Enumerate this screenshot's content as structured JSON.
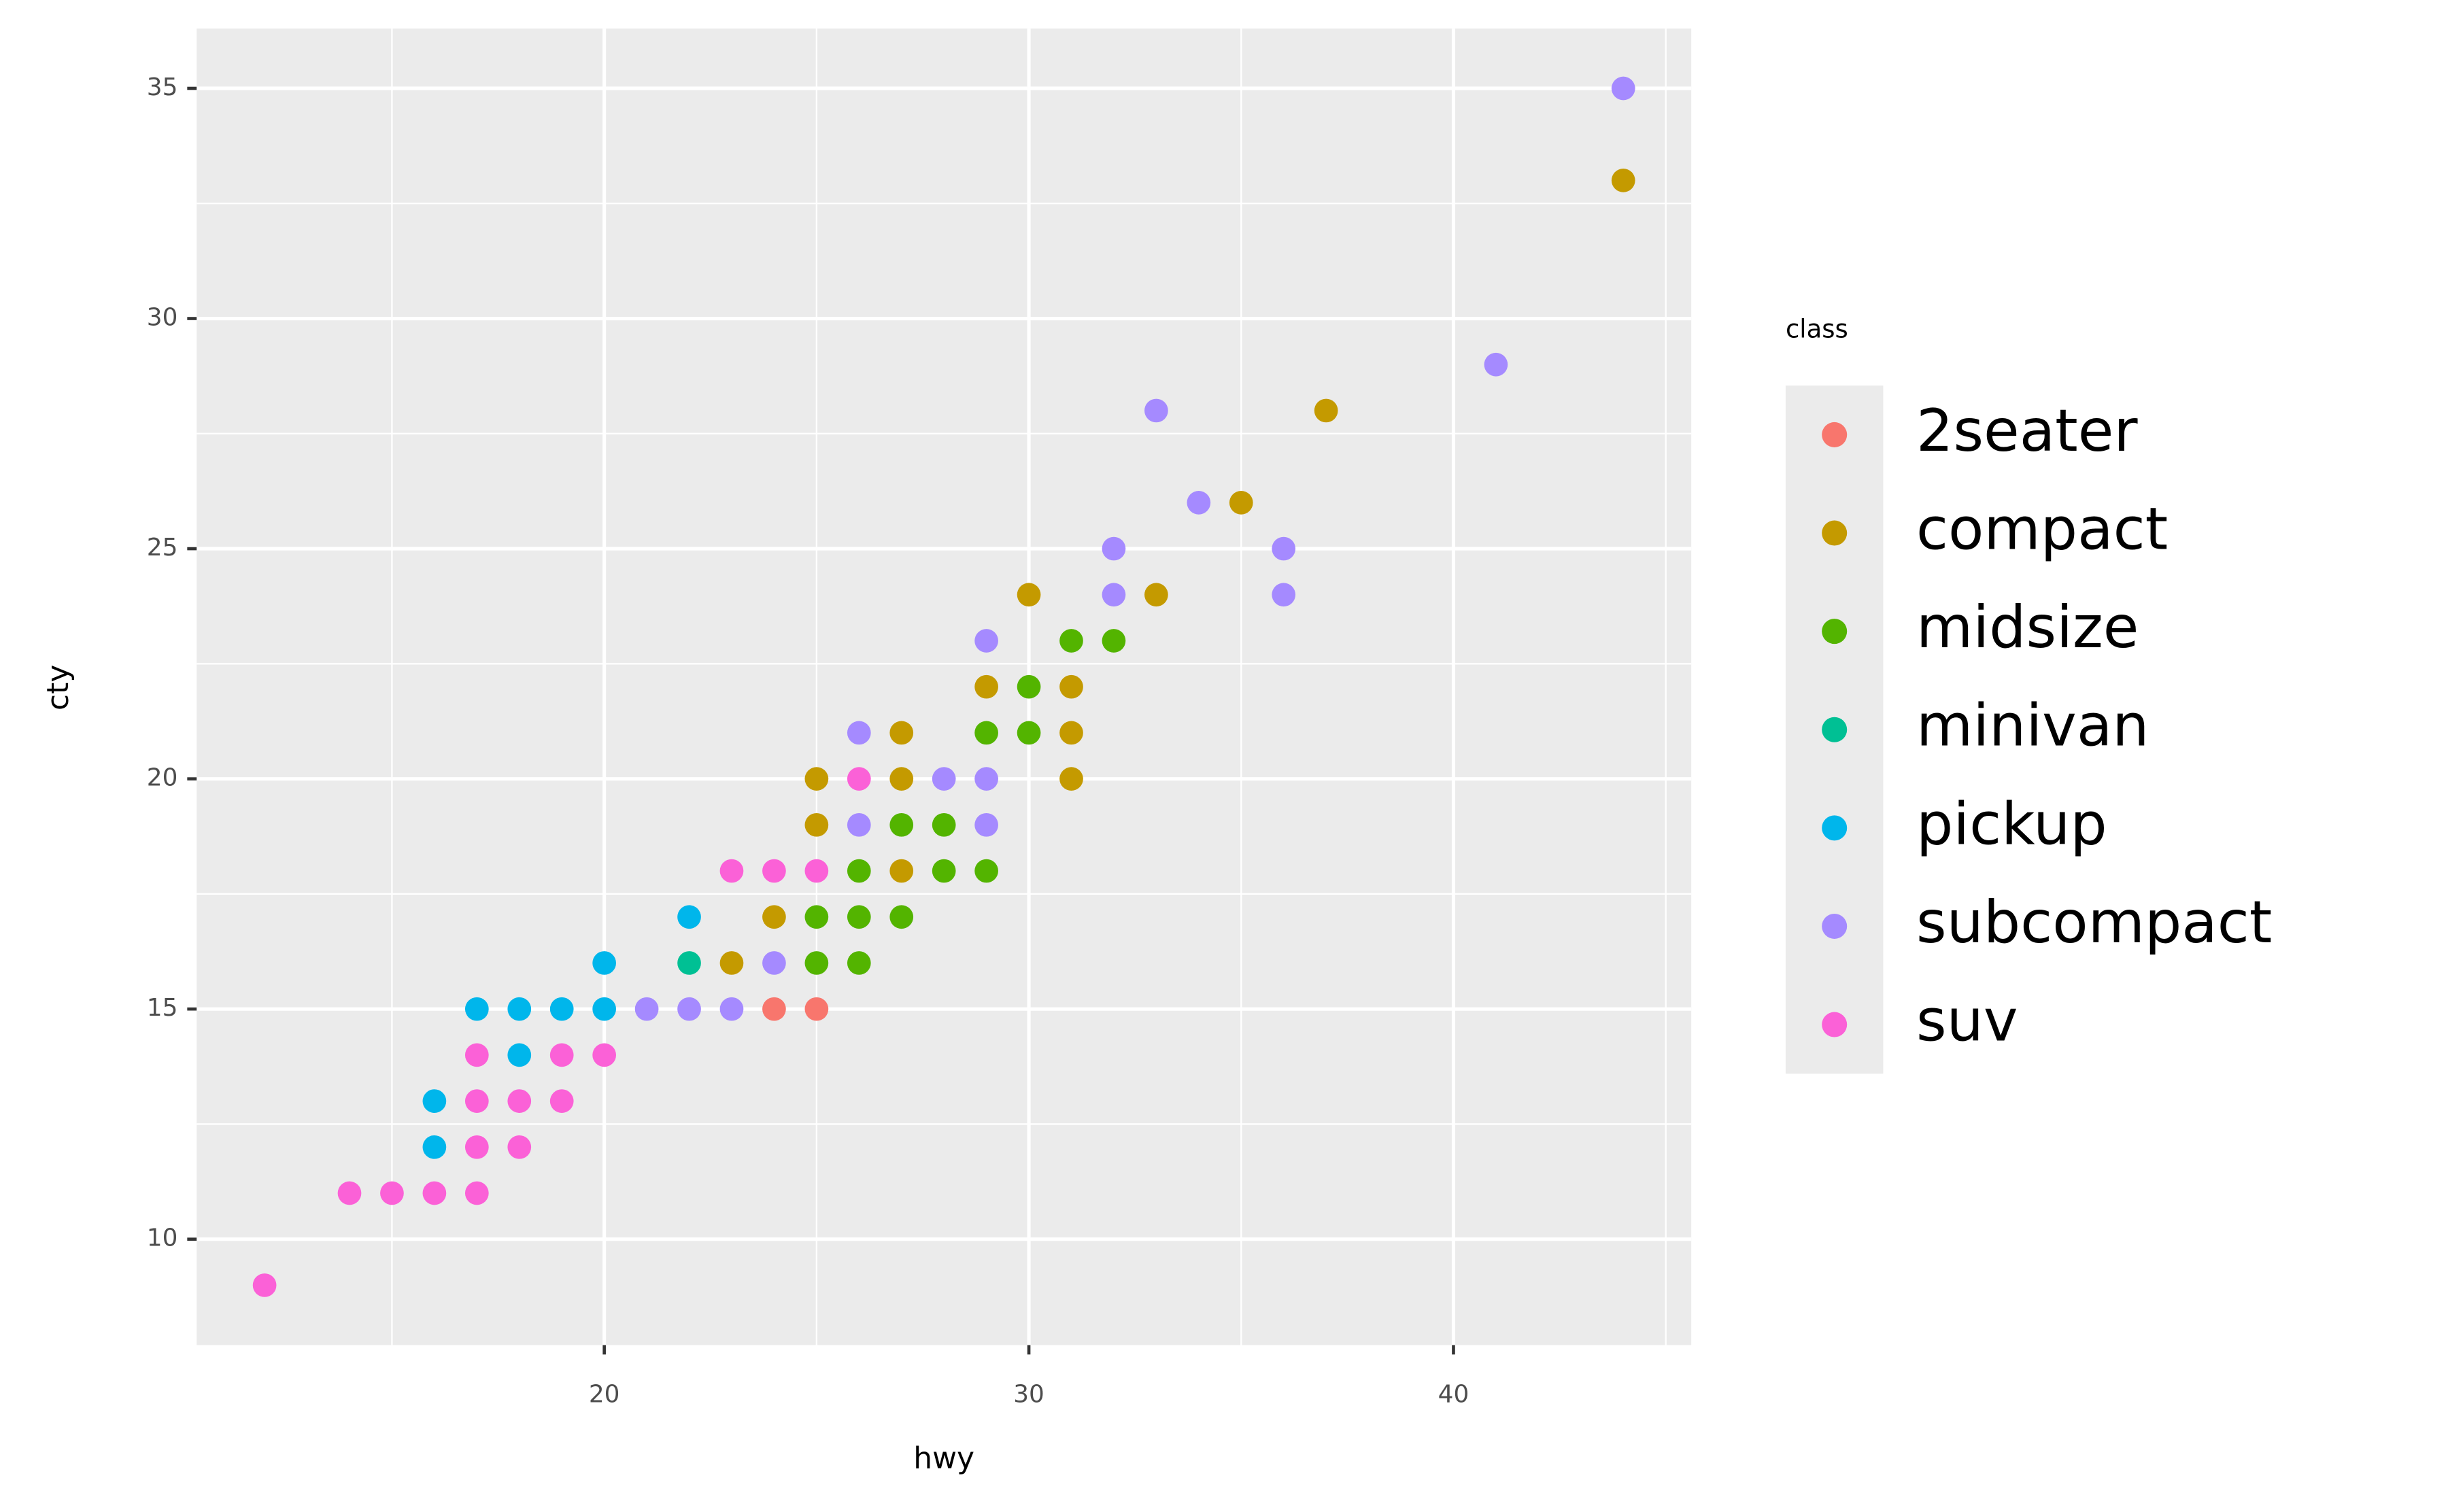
{
  "chart_data": {
    "type": "scatter",
    "x_label": "hwy",
    "y_label": "cty",
    "legend_title": "class",
    "legend_position": "right",
    "grid": true,
    "xlim": [
      10.4,
      45.6
    ],
    "ylim": [
      7.7,
      36.3
    ],
    "xticks": [
      20,
      30,
      40
    ],
    "yticks": [
      10,
      15,
      20,
      25,
      30,
      35
    ],
    "series": [
      {
        "name": "2seater",
        "color": "#F8766D",
        "x": [
          24,
          25
        ],
        "values": [
          15,
          15
        ]
      },
      {
        "name": "compact",
        "color": "#C49A00",
        "x": [
          44,
          37,
          35,
          33,
          30,
          29,
          31,
          27,
          31,
          25,
          27,
          31,
          25,
          27,
          24,
          23
        ],
        "values": [
          33,
          28,
          26,
          24,
          24,
          22,
          22,
          21,
          21,
          20,
          20,
          20,
          19,
          18,
          17,
          16
        ]
      },
      {
        "name": "midsize",
        "color": "#53B400",
        "x": [
          31,
          32,
          30,
          29,
          30,
          27,
          28,
          26,
          28,
          29,
          25,
          26,
          27,
          25,
          26
        ],
        "values": [
          23,
          23,
          22,
          21,
          21,
          19,
          19,
          18,
          18,
          18,
          17,
          17,
          17,
          16,
          16
        ]
      },
      {
        "name": "minivan",
        "color": "#00C094",
        "x": [
          22
        ],
        "values": [
          16
        ]
      },
      {
        "name": "pickup",
        "color": "#00B6EB",
        "x": [
          22,
          20,
          17,
          18,
          19,
          20,
          16,
          18,
          16
        ],
        "values": [
          17,
          16,
          15,
          15,
          15,
          15,
          13,
          14,
          12
        ]
      },
      {
        "name": "subcompact",
        "color": "#A58AFF",
        "x": [
          44,
          41,
          33,
          34,
          36,
          32,
          32,
          36,
          29,
          26,
          28,
          29,
          26,
          29,
          24,
          21,
          22,
          23
        ],
        "values": [
          35,
          29,
          28,
          26,
          25,
          25,
          24,
          24,
          23,
          21,
          20,
          20,
          19,
          19,
          16,
          15,
          15,
          15
        ]
      },
      {
        "name": "suv",
        "color": "#FB61D7",
        "x": [
          26,
          23,
          24,
          25,
          17,
          20,
          19,
          17,
          18,
          19,
          17,
          18,
          14,
          15,
          16,
          17,
          12
        ],
        "values": [
          20,
          18,
          18,
          18,
          14,
          14,
          14,
          13,
          13,
          13,
          12,
          12,
          11,
          11,
          11,
          11,
          9
        ]
      }
    ]
  }
}
